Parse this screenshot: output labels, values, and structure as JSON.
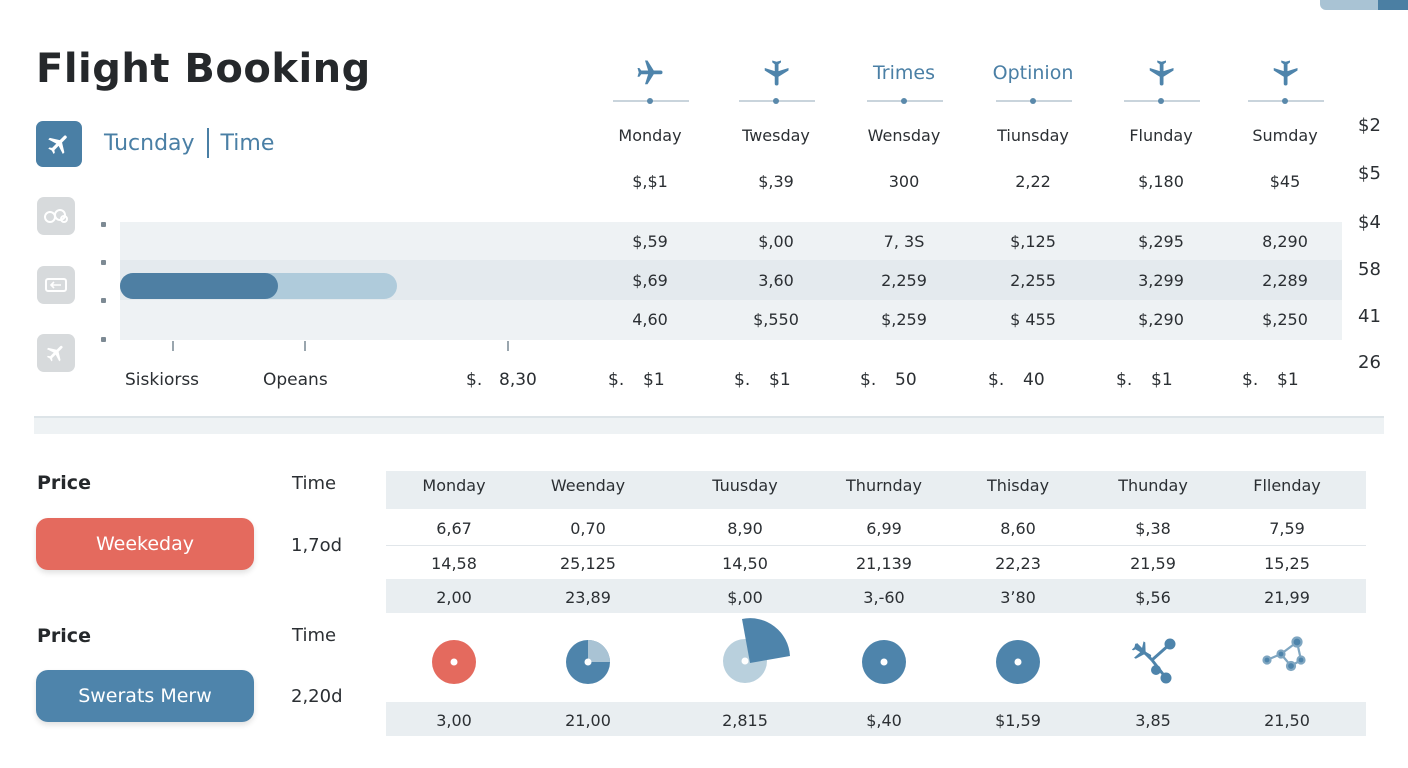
{
  "app": {
    "title": "Flight Booking"
  },
  "sub_header": {
    "day": "Tucnday",
    "time": "Time"
  },
  "top_columns": [
    {
      "icon": "airplane-icon",
      "label": ""
    },
    {
      "icon": "airplane-down-icon",
      "label": ""
    },
    {
      "icon": "",
      "label": "Trimes"
    },
    {
      "icon": "",
      "label": "Optinion"
    },
    {
      "icon": "airplane-down-icon",
      "label": ""
    },
    {
      "icon": "airplane-down-icon",
      "label": ""
    }
  ],
  "top_days": [
    "Monday",
    "Twesday",
    "Wensday",
    "Tiunsday",
    "Flunday",
    "Sumday"
  ],
  "top_prices": [
    "$,$1",
    "$,39",
    "300",
    "2,22",
    "$,180",
    "$45"
  ],
  "top_rows": [
    [
      "$,59",
      "$,00",
      "7, 3S",
      "$,125",
      "$,295",
      "8,290"
    ],
    [
      "$,69",
      "3,60",
      "2,259",
      "2,255",
      "3,299",
      "2,289"
    ],
    [
      "4,60",
      "$,550",
      "$,259",
      "$ 455",
      "$,290",
      "$,250"
    ]
  ],
  "progress": {
    "fill_fraction": 0.57
  },
  "side_icons": [
    "link-icon",
    "ticket-icon",
    "airplane-icon"
  ],
  "axis_labels": [
    "Siskiorss",
    "Opeans"
  ],
  "summary_row": [
    {
      "prefix": "$.",
      "value": "8,30"
    },
    {
      "prefix": "$.",
      "value": "$1"
    },
    {
      "prefix": "$.",
      "value": "$1"
    },
    {
      "prefix": "$.",
      "value": "50"
    },
    {
      "prefix": "$.",
      "value": "40"
    },
    {
      "prefix": "$.",
      "value": "$1"
    },
    {
      "prefix": "$.",
      "value": "$1"
    }
  ],
  "right_column": [
    "$2",
    "$5",
    "$4",
    "58",
    "41",
    "26"
  ],
  "left_panel": [
    {
      "price_label": "Price",
      "time_label": "Time",
      "button": "Weekeday",
      "time_value": "1,7od",
      "color": "#e46a5e"
    },
    {
      "price_label": "Price",
      "time_label": "Time",
      "button": "Swerats Merw",
      "time_value": "2,20d",
      "color": "#4e84ab"
    }
  ],
  "bottom_days": [
    "Monday",
    "Weenday",
    "Tuusday",
    "Thurnday",
    "Thisday",
    "Thunday",
    "Fllenday"
  ],
  "bottom_rows": [
    [
      "6,67",
      "0,70",
      "8,90",
      "6,99",
      "8,60",
      "$,38",
      "7,59"
    ],
    [
      "14,58",
      "25,125",
      "14,50",
      "21,139",
      "22,23",
      "21,59",
      "15,25"
    ],
    [
      "2,00",
      "23,89",
      "$,00",
      "3,-60",
      "3ʼ80",
      "$,56",
      "21,99"
    ]
  ],
  "bottom_icons": [
    "dot-red-icon",
    "pie-chart-icon",
    "pie-chart-icon",
    "dot-icon",
    "dot-icon",
    "airplane-network-icon",
    "network-icon"
  ],
  "bottom_last_row": [
    "3,00",
    "21,00",
    "2,815",
    "$,40",
    "$1,59",
    "3,85",
    "21,50"
  ],
  "colors": {
    "accent": "#4a7fa5",
    "red": "#e46a5e",
    "band": "#e9eef1"
  }
}
